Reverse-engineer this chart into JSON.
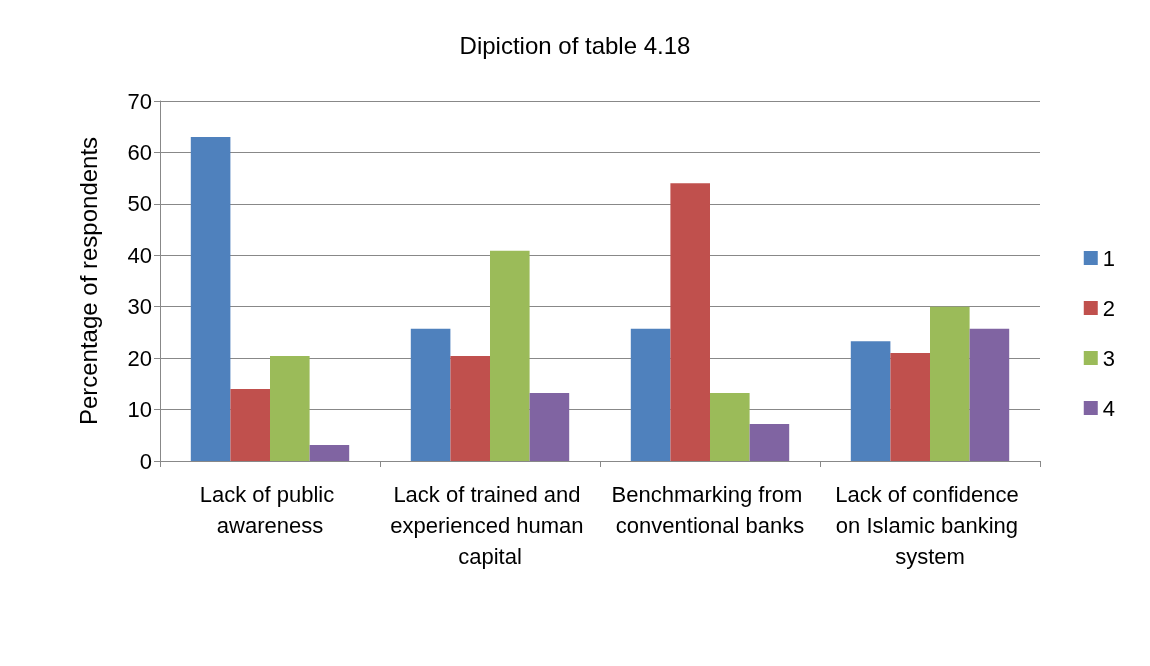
{
  "chart_data": {
    "type": "bar",
    "title": "Dipiction of table 4.18",
    "ylabel": "Percentage of respondents",
    "categories": [
      "Lack of public awareness",
      "Lack of trained and experienced human capital",
      "Benchmarking from conventional banks",
      "Lack of confidence on Islamic banking system"
    ],
    "series": [
      {
        "name": "1",
        "color": "#4f81bd",
        "values": [
          63,
          25.7,
          25.7,
          23.3
        ]
      },
      {
        "name": "2",
        "color": "#c0504d",
        "values": [
          14,
          20.4,
          54,
          21
        ]
      },
      {
        "name": "3",
        "color": "#9bbb59",
        "values": [
          20.4,
          40.9,
          13.2,
          30
        ]
      },
      {
        "name": "4",
        "color": "#8064a2",
        "values": [
          3.1,
          13.2,
          7.2,
          25.7
        ]
      }
    ],
    "ylim": [
      0,
      70
    ],
    "yticks": [
      0,
      10,
      20,
      30,
      40,
      50,
      60,
      70
    ],
    "grid": "y",
    "legend": "right"
  }
}
